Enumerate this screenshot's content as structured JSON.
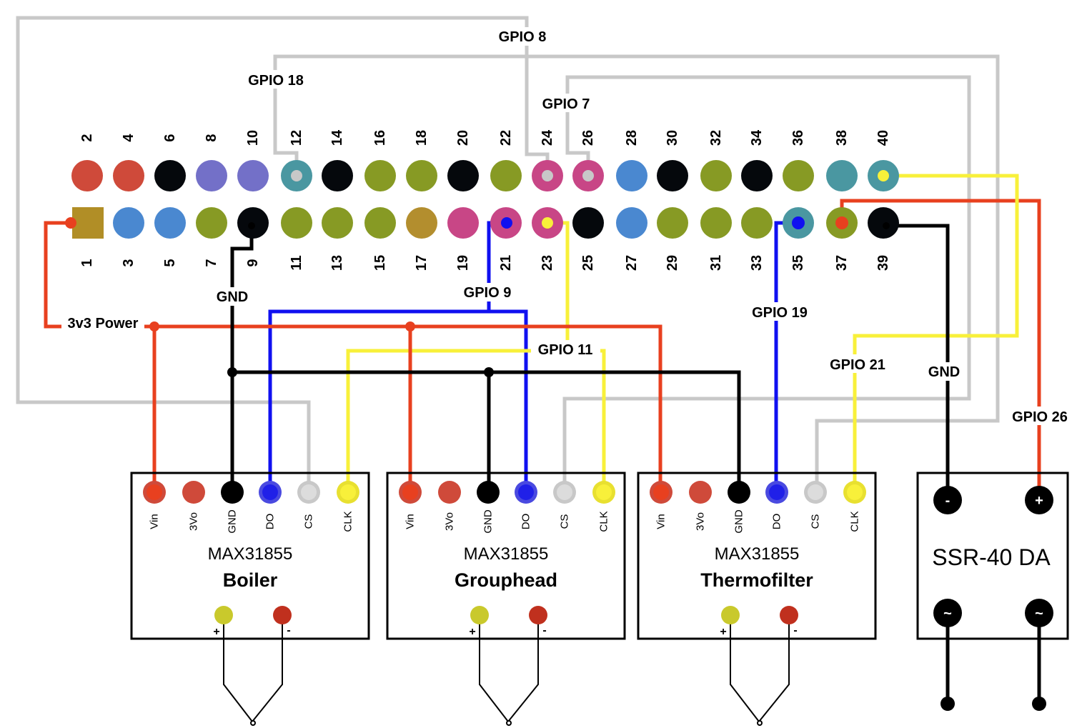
{
  "colors": {
    "power": "#e8401f",
    "ground": "#000000",
    "spi_do": "#1010f0",
    "spi_clk": "#f8f03a",
    "spi_cs": "#c8c8c8",
    "pin_5v": "#cf4a3a",
    "pin_3v3": "#b18e26",
    "pin_gnd": "#05080c",
    "pin_i2c": "#7370c8",
    "pin_uart": "#4a97a1",
    "pin_gpio": "#879a24",
    "pin_spi": "#c84686",
    "pin_blue": "#4a88d0",
    "pin_gpclk": "#b38e2e"
  },
  "header": {
    "top_row": [
      {
        "num": "2",
        "color": "pin_5v"
      },
      {
        "num": "4",
        "color": "pin_5v"
      },
      {
        "num": "6",
        "color": "pin_gnd"
      },
      {
        "num": "8",
        "color": "pin_i2c"
      },
      {
        "num": "10",
        "color": "pin_i2c"
      },
      {
        "num": "12",
        "color": "pin_uart"
      },
      {
        "num": "14",
        "color": "pin_gnd"
      },
      {
        "num": "16",
        "color": "pin_gpio"
      },
      {
        "num": "18",
        "color": "pin_gpio"
      },
      {
        "num": "20",
        "color": "pin_gnd"
      },
      {
        "num": "22",
        "color": "pin_gpio"
      },
      {
        "num": "24",
        "color": "pin_spi"
      },
      {
        "num": "26",
        "color": "pin_spi"
      },
      {
        "num": "28",
        "color": "pin_blue"
      },
      {
        "num": "30",
        "color": "pin_gnd"
      },
      {
        "num": "32",
        "color": "pin_gpio"
      },
      {
        "num": "34",
        "color": "pin_gnd"
      },
      {
        "num": "36",
        "color": "pin_gpio"
      },
      {
        "num": "38",
        "color": "pin_uart"
      },
      {
        "num": "40",
        "color": "pin_uart"
      }
    ],
    "bottom_row": [
      {
        "num": "1",
        "color": "pin_3v3",
        "square": true
      },
      {
        "num": "3",
        "color": "pin_blue"
      },
      {
        "num": "5",
        "color": "pin_blue"
      },
      {
        "num": "7",
        "color": "pin_gpio"
      },
      {
        "num": "9",
        "color": "pin_gnd"
      },
      {
        "num": "11",
        "color": "pin_gpio"
      },
      {
        "num": "13",
        "color": "pin_gpio"
      },
      {
        "num": "15",
        "color": "pin_gpio"
      },
      {
        "num": "17",
        "color": "pin_gpclk"
      },
      {
        "num": "19",
        "color": "pin_spi"
      },
      {
        "num": "21",
        "color": "pin_spi"
      },
      {
        "num": "23",
        "color": "pin_spi"
      },
      {
        "num": "25",
        "color": "pin_gnd"
      },
      {
        "num": "27",
        "color": "pin_blue"
      },
      {
        "num": "29",
        "color": "pin_gpio"
      },
      {
        "num": "31",
        "color": "pin_gpio"
      },
      {
        "num": "33",
        "color": "pin_gpio"
      },
      {
        "num": "35",
        "color": "pin_uart"
      },
      {
        "num": "37",
        "color": "pin_gpio"
      },
      {
        "num": "39",
        "color": "pin_gnd"
      }
    ]
  },
  "labels": {
    "gpio8": "GPIO 8",
    "gpio18": "GPIO 18",
    "gpio7": "GPIO 7",
    "gpio9": "GPIO 9",
    "gpio11": "GPIO 11",
    "gpio19": "GPIO 19",
    "gpio21": "GPIO 21",
    "gpio26": "GPIO 26",
    "power": "3v3 Power",
    "gnd_left": "GND",
    "gnd_ssr": "GND"
  },
  "modules": [
    {
      "chip": "MAX31855",
      "name": "Boiler",
      "pins": [
        "Vin",
        "3Vo",
        "GND",
        "DO",
        "CS",
        "CLK"
      ],
      "plus": "+",
      "minus": "-"
    },
    {
      "chip": "MAX31855",
      "name": "Grouphead",
      "pins": [
        "Vin",
        "3Vo",
        "GND",
        "DO",
        "CS",
        "CLK"
      ],
      "plus": "+",
      "minus": "-"
    },
    {
      "chip": "MAX31855",
      "name": "Thermofilter",
      "pins": [
        "Vin",
        "3Vo",
        "GND",
        "DO",
        "CS",
        "CLK"
      ],
      "plus": "+",
      "minus": "-"
    }
  ],
  "ssr": {
    "name": "SSR-40 DA",
    "minus": "-",
    "plus": "+",
    "ac1": "~",
    "ac2": "~"
  }
}
